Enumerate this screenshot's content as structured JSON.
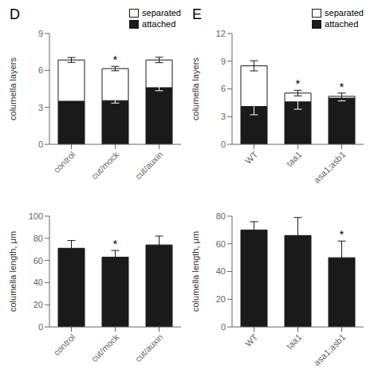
{
  "chart_data": [
    {
      "type": "bar",
      "title": "D",
      "stacked": true,
      "y_label": "columella layers",
      "categories": [
        "control",
        "cut/mock",
        "cut/auxin"
      ],
      "series": [
        {
          "name": "attached",
          "color": "#1a1a1a",
          "values": [
            3.5,
            3.55,
            4.6
          ],
          "errors": [
            0.0,
            0.2,
            0.25
          ]
        },
        {
          "name": "separated",
          "color": "#ffffff",
          "values": [
            3.35,
            2.6,
            2.25
          ],
          "errors": [
            0.2,
            0.18,
            0.22
          ]
        }
      ],
      "annotations": [
        {
          "category": "cut/mock",
          "text": "*"
        }
      ],
      "ylim": [
        0,
        9
      ],
      "yticks": [
        0,
        3,
        6,
        9
      ],
      "grid": false,
      "legend": "upper right"
    },
    {
      "type": "bar",
      "title": "E",
      "stacked": true,
      "y_label": "columella layers",
      "categories": [
        "WT",
        "taa1",
        "asa1;asb1"
      ],
      "series": [
        {
          "name": "attached",
          "color": "#1a1a1a",
          "values": [
            4.1,
            4.6,
            5.0
          ],
          "errors": [
            0.9,
            0.8,
            0.3
          ]
        },
        {
          "name": "separated",
          "color": "#ffffff",
          "values": [
            4.4,
            0.95,
            0.2
          ],
          "errors": [
            0.55,
            0.3,
            0.35
          ]
        }
      ],
      "annotations": [
        {
          "category": "taa1",
          "text": "*"
        },
        {
          "category": "asa1;asb1",
          "text": "*"
        }
      ],
      "ylim": [
        0,
        12
      ],
      "yticks": [
        0,
        3,
        6,
        9,
        12
      ],
      "grid": false,
      "legend": "upper right"
    },
    {
      "type": "bar",
      "y_label": "columella length, μm",
      "categories": [
        "control",
        "cut/mock",
        "cut/auxin"
      ],
      "values": [
        71,
        63,
        74
      ],
      "errors": [
        7,
        6,
        8
      ],
      "color": "#1a1a1a",
      "annotations": [
        {
          "category": "cut/mock",
          "text": "*"
        }
      ],
      "ylim": [
        0,
        100
      ],
      "yticks": [
        0,
        20,
        40,
        60,
        80,
        100
      ],
      "grid": false
    },
    {
      "type": "bar",
      "y_label": "columella length, μm",
      "categories": [
        "WT",
        "taa1",
        "asa1;asb1"
      ],
      "values": [
        70,
        66,
        50
      ],
      "errors": [
        6,
        13,
        12
      ],
      "color": "#1a1a1a",
      "annotations": [
        {
          "category": "asa1;asb1",
          "text": "*"
        }
      ],
      "ylim": [
        0,
        80
      ],
      "yticks": [
        0,
        20,
        40,
        60,
        80
      ],
      "grid": false
    }
  ]
}
